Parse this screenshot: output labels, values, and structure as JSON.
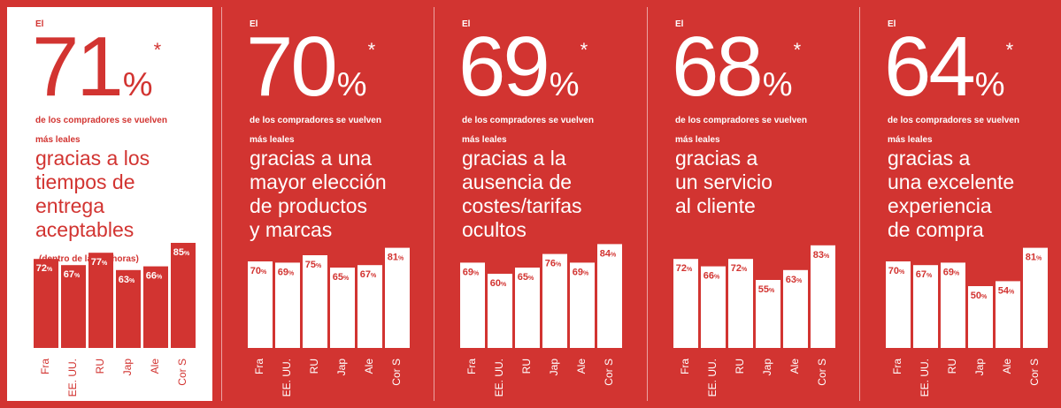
{
  "chart_data": [
    {
      "type": "bar",
      "prefix": "El",
      "headline_value": "71",
      "headline_unit": "%",
      "headline_mark": "*",
      "subtitle": [
        "de los compradores se vuelven",
        "más leales"
      ],
      "reason": [
        "gracias a los",
        "tiempos de",
        "entrega",
        "aceptables"
      ],
      "note": "(dentro de las 96 horas)",
      "categories": [
        "Fra",
        "EE. UU.",
        "RU",
        "Jap",
        "Ale",
        "Cor S"
      ],
      "values": [
        72,
        67,
        77,
        63,
        66,
        85
      ],
      "value_suffix": "%",
      "ylim": [
        0,
        100
      ],
      "highlight": true
    },
    {
      "type": "bar",
      "prefix": "El",
      "headline_value": "70",
      "headline_unit": "%",
      "headline_mark": "*",
      "subtitle": [
        "de los compradores se vuelven",
        "más leales"
      ],
      "reason": [
        "gracias a una",
        "mayor elección",
        "de productos",
        "y marcas"
      ],
      "note": "",
      "categories": [
        "Fra",
        "EE. UU.",
        "RU",
        "Jap",
        "Ale",
        "Cor S"
      ],
      "values": [
        70,
        69,
        75,
        65,
        67,
        81
      ],
      "value_suffix": "%",
      "ylim": [
        0,
        100
      ],
      "highlight": false
    },
    {
      "type": "bar",
      "prefix": "El",
      "headline_value": "69",
      "headline_unit": "%",
      "headline_mark": "*",
      "subtitle": [
        "de los compradores se vuelven",
        "más leales"
      ],
      "reason": [
        "gracias a la",
        "ausencia de",
        "costes/tarifas",
        "ocultos"
      ],
      "note": "",
      "categories": [
        "Fra",
        "EE. UU.",
        "RU",
        "Jap",
        "Ale",
        "Cor S"
      ],
      "values": [
        69,
        60,
        65,
        76,
        69,
        84
      ],
      "value_suffix": "%",
      "ylim": [
        0,
        100
      ],
      "highlight": false
    },
    {
      "type": "bar",
      "prefix": "El",
      "headline_value": "68",
      "headline_unit": "%",
      "headline_mark": "*",
      "subtitle": [
        "de los compradores se vuelven",
        "más leales"
      ],
      "reason": [
        "gracias a",
        "un servicio",
        "al cliente"
      ],
      "note": "",
      "categories": [
        "Fra",
        "EE. UU.",
        "RU",
        "Jap",
        "Ale",
        "Cor S"
      ],
      "values": [
        72,
        66,
        72,
        55,
        63,
        83
      ],
      "value_suffix": "%",
      "ylim": [
        0,
        100
      ],
      "highlight": false
    },
    {
      "type": "bar",
      "prefix": "El",
      "headline_value": "64",
      "headline_unit": "%",
      "headline_mark": "*",
      "subtitle": [
        "de los compradores se vuelven",
        "más leales"
      ],
      "reason": [
        "gracias a",
        "una excelente",
        "experiencia",
        "de compra"
      ],
      "note": "",
      "categories": [
        "Fra",
        "EE. UU.",
        "RU",
        "Jap",
        "Ale",
        "Cor S"
      ],
      "values": [
        70,
        67,
        69,
        50,
        54,
        81
      ],
      "value_suffix": "%",
      "ylim": [
        0,
        100
      ],
      "highlight": false
    }
  ],
  "colors": {
    "red": "#d23431",
    "white": "#ffffff"
  }
}
